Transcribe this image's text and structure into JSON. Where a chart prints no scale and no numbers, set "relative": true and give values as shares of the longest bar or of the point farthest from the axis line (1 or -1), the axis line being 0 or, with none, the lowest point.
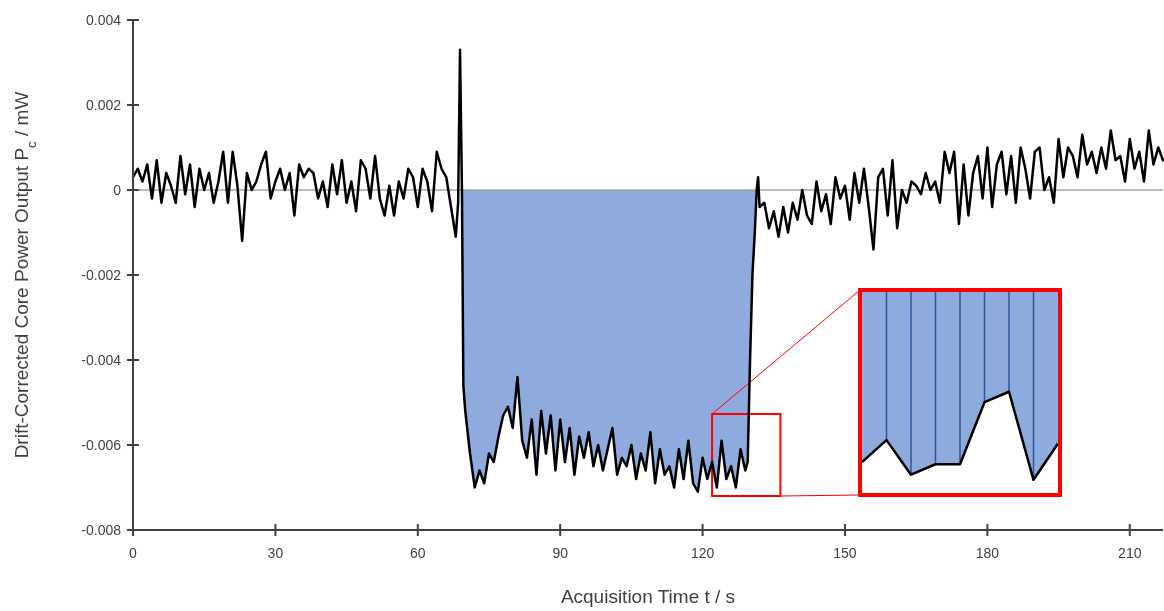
{
  "chart_data": [
    {
      "type": "line",
      "xlabel": "Acquisition Time t / s",
      "ylabel": "Drift-Corrected Core Power Output P$_{c}$ / mW",
      "xlim": [
        0,
        217
      ],
      "ylim": [
        -0.008,
        0.004
      ],
      "xticks": [
        0,
        30,
        60,
        90,
        120,
        150,
        180,
        210
      ],
      "yticks": [
        -0.008,
        -0.006,
        -0.004,
        -0.002,
        0,
        0.002,
        0.004
      ],
      "grid": false,
      "marker": "none",
      "line_style": "solid",
      "ref_lines": [
        {
          "axis": "y",
          "value": 0,
          "color": "#a6a6a6"
        }
      ],
      "series": [
        {
          "type": "area",
          "color": "#8faadc",
          "x": [
            69.3,
            69.6,
            70,
            71,
            72,
            73,
            74,
            75,
            76,
            77,
            78,
            79,
            80,
            81,
            82,
            83,
            84,
            85,
            86,
            87,
            88,
            89,
            90,
            91,
            92,
            93,
            94,
            95,
            96,
            97,
            98,
            99,
            100,
            101,
            102,
            103,
            104,
            105,
            106,
            107,
            108,
            109,
            110,
            111,
            112,
            113,
            114,
            115,
            116,
            117,
            118,
            119,
            120,
            121,
            122,
            123,
            124,
            125,
            126,
            127,
            128,
            129,
            129.5,
            130,
            130.5,
            131,
            131.4
          ],
          "values": [
            0,
            -0.0046,
            -0.0052,
            -0.0062,
            -0.007,
            -0.0066,
            -0.0069,
            -0.0062,
            -0.0064,
            -0.0058,
            -0.0053,
            -0.0051,
            -0.0056,
            -0.0044,
            -0.0059,
            -0.0063,
            -0.0054,
            -0.0067,
            -0.0052,
            -0.0062,
            -0.0053,
            -0.0066,
            -0.0054,
            -0.0064,
            -0.0056,
            -0.0067,
            -0.0058,
            -0.0063,
            -0.0057,
            -0.0065,
            -0.006,
            -0.0066,
            -0.0061,
            -0.0056,
            -0.0067,
            -0.0063,
            -0.0065,
            -0.006,
            -0.0068,
            -0.0062,
            -0.0066,
            -0.0057,
            -0.0069,
            -0.0061,
            -0.0067,
            -0.0065,
            -0.007,
            -0.0061,
            -0.0068,
            -0.0059,
            -0.0069,
            -0.0071,
            -0.0063,
            -0.0068,
            -0.0064,
            -0.007,
            -0.0059,
            -0.0068,
            -0.0065,
            -0.007,
            -0.0061,
            -0.0066,
            -0.0064,
            -0.004,
            -0.002,
            -0.001,
            0
          ]
        },
        {
          "color": "#000000",
          "x": [
            0,
            1,
            2,
            3,
            4,
            5,
            6,
            7,
            8,
            9,
            10,
            11,
            12,
            13,
            14,
            15,
            16,
            17,
            18,
            19,
            20,
            21,
            22,
            23,
            24,
            25,
            26,
            27,
            28,
            29,
            30,
            31,
            32,
            33,
            34,
            35,
            36,
            37,
            38,
            39,
            40,
            41,
            42,
            43,
            44,
            45,
            46,
            47,
            48,
            49,
            50,
            51,
            52,
            53,
            54,
            55,
            56,
            57,
            58,
            59,
            60,
            61,
            62,
            63,
            64,
            65,
            66,
            67,
            68,
            68.5,
            68.9,
            69.3,
            69.6,
            70,
            71,
            72,
            73,
            74,
            75,
            76,
            77,
            78,
            79,
            80,
            81,
            82,
            83,
            84,
            85,
            86,
            87,
            88,
            89,
            90,
            91,
            92,
            93,
            94,
            95,
            96,
            97,
            98,
            99,
            100,
            101,
            102,
            103,
            104,
            105,
            106,
            107,
            108,
            109,
            110,
            111,
            112,
            113,
            114,
            115,
            116,
            117,
            118,
            119,
            120,
            121,
            122,
            123,
            124,
            125,
            126,
            127,
            128,
            129,
            129.5,
            130,
            130.5,
            131,
            131.4,
            131.7,
            132,
            133,
            134,
            135,
            136,
            137,
            138,
            139,
            140,
            141,
            142,
            143,
            144,
            145,
            146,
            147,
            148,
            149,
            150,
            151,
            152,
            153,
            154,
            155,
            156,
            157,
            158,
            159,
            160,
            161,
            162,
            163,
            164,
            165,
            166,
            167,
            168,
            169,
            170,
            171,
            172,
            173,
            174,
            175,
            176,
            177,
            178,
            179,
            180,
            181,
            182,
            183,
            184,
            185,
            186,
            187,
            188,
            189,
            190,
            191,
            192,
            193,
            194,
            195,
            196,
            197,
            198,
            199,
            200,
            201,
            202,
            203,
            204,
            205,
            206,
            207,
            208,
            209,
            210,
            211,
            212,
            213,
            214,
            215,
            216,
            217
          ],
          "values": [
            0.0003,
            0.0005,
            0.0002,
            0.0006,
            -0.0002,
            0.0007,
            -0.0003,
            0.0004,
            0.0001,
            -0.0003,
            0.0008,
            -0.0001,
            0.0006,
            -0.0004,
            0.0005,
            0,
            0.0004,
            -0.0003,
            0.0002,
            0.0009,
            -0.0003,
            0.0009,
            0.0001,
            -0.0012,
            0.0004,
            0,
            0.0002,
            0.0006,
            0.0009,
            -0.0002,
            0.0002,
            0.0005,
            0,
            0.0004,
            -0.0006,
            0.0006,
            0.0003,
            0.0005,
            0.0004,
            -0.0002,
            0.0002,
            -0.0004,
            0.0006,
            -0.0001,
            0.0007,
            -0.0003,
            0.0002,
            -0.0005,
            0.0007,
            0.0005,
            -0.0002,
            0.0008,
            -0.0002,
            -0.0006,
            0.0001,
            -0.0006,
            0.0002,
            -0.0002,
            0.0005,
            0.0003,
            -0.0004,
            0.0005,
            0.0002,
            -0.0005,
            0.0009,
            0.0005,
            0.0003,
            -0.0004,
            -0.0011,
            -0.0003,
            0.0033,
            0,
            -0.0046,
            -0.0052,
            -0.0062,
            -0.007,
            -0.0066,
            -0.0069,
            -0.0062,
            -0.0064,
            -0.0058,
            -0.0053,
            -0.0051,
            -0.0056,
            -0.0044,
            -0.0059,
            -0.0063,
            -0.0054,
            -0.0067,
            -0.0052,
            -0.0062,
            -0.0053,
            -0.0066,
            -0.0054,
            -0.0064,
            -0.0056,
            -0.0067,
            -0.0058,
            -0.0063,
            -0.0057,
            -0.0065,
            -0.006,
            -0.0066,
            -0.0061,
            -0.0056,
            -0.0067,
            -0.0063,
            -0.0065,
            -0.006,
            -0.0068,
            -0.0062,
            -0.0066,
            -0.0057,
            -0.0069,
            -0.0061,
            -0.0067,
            -0.0065,
            -0.007,
            -0.0061,
            -0.0068,
            -0.0059,
            -0.0069,
            -0.0071,
            -0.0063,
            -0.0068,
            -0.0064,
            -0.007,
            -0.0059,
            -0.0068,
            -0.0065,
            -0.007,
            -0.0061,
            -0.0066,
            -0.0064,
            -0.004,
            -0.002,
            -0.001,
            0,
            0.0003,
            -0.0004,
            -0.0003,
            -0.0009,
            -0.0005,
            -0.0011,
            -0.0004,
            -0.001,
            -0.0003,
            -0.0007,
            0,
            -0.0006,
            -0.0008,
            0.0002,
            -0.0005,
            -0.0001,
            -0.0008,
            0.0003,
            -0.0002,
            0.0001,
            -0.0007,
            0.0004,
            -0.0003,
            0.0005,
            -0.0004,
            -0.0014,
            0.0003,
            0.0005,
            -0.0006,
            0.0007,
            -0.0009,
            0,
            -0.0003,
            0.0002,
            0.0001,
            -0.0001,
            0.0004,
            0,
            0.0002,
            -0.0003,
            0.0009,
            0.0004,
            0.0009,
            -0.0008,
            0.0006,
            -0.0006,
            0.0004,
            0.0008,
            -0.0002,
            0.001,
            -0.0004,
            0.0006,
            0.0009,
            -0.0001,
            0.0008,
            -0.0003,
            0.001,
            0.0005,
            -0.0002,
            0.0009,
            0.001,
            0,
            0.0003,
            -0.0003,
            0.0012,
            0.0003,
            0.001,
            0.0008,
            0.0003,
            0.0013,
            0.0006,
            0.0009,
            0.0004,
            0.001,
            0.0005,
            0.0014,
            0.0007,
            0.0008,
            0.0002,
            0.0012,
            0.0005,
            0.0009,
            0.0002,
            0.0014,
            0.0006,
            0.001,
            0.0007
          ]
        }
      ]
    },
    {
      "type": "area",
      "relative": true,
      "grid": "x",
      "categories": [
        null,
        null,
        null,
        null,
        null,
        null,
        null,
        null,
        null
      ],
      "series": [
        {
          "color": "#8faadc",
          "values": [
            -0.907,
            -0.791,
            -0.973,
            -0.918,
            -0.918,
            -0.591,
            -0.536,
            -1,
            -0.809
          ]
        }
      ]
    }
  ]
}
